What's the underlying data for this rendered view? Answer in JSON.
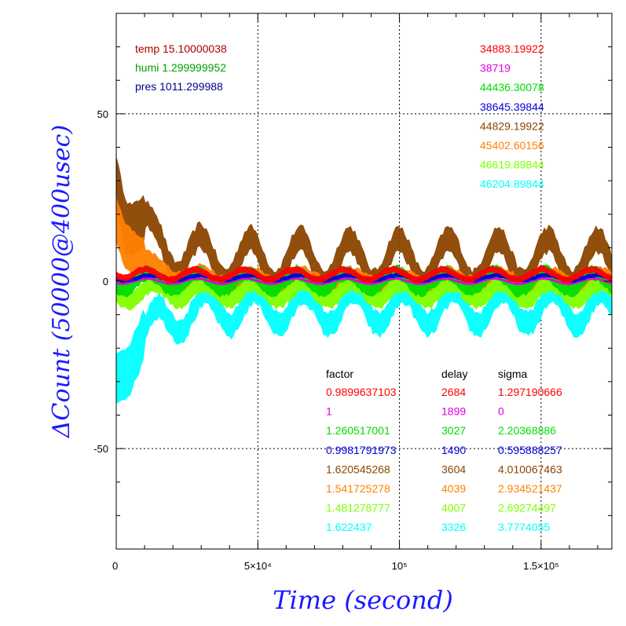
{
  "chart_data": {
    "type": "line",
    "title": "",
    "xlabel": "Time (second)",
    "ylabel": "ΔCount (50000@400usec)",
    "xlim": [
      0,
      175000
    ],
    "ylim": [
      -80,
      80
    ],
    "grid": true,
    "x_ticks": [
      {
        "value": 0,
        "label": "0"
      },
      {
        "value": 50000,
        "label": "5×10⁴"
      },
      {
        "value": 100000,
        "label": "10⁵"
      },
      {
        "value": 150000,
        "label": "1.5×10⁵"
      }
    ],
    "y_ticks": [
      {
        "value": 50,
        "label": "50"
      },
      {
        "value": 0,
        "label": "0"
      },
      {
        "value": -50,
        "label": "-50"
      }
    ],
    "env": [
      {
        "label": "temp",
        "value": "15.10000038",
        "color": "#aa0000"
      },
      {
        "label": "humi",
        "value": "1.299999952",
        "color": "#00a000"
      },
      {
        "label": "pres",
        "value": "1011.299988",
        "color": "#00008b"
      }
    ],
    "header": {
      "factor": "factor",
      "delay": "delay",
      "sigma": "sigma"
    },
    "series": [
      {
        "id": "34883.19922",
        "color": "#ff0000",
        "factor": "0.9899637103",
        "delay": "2684",
        "sigma": "1.297190666",
        "start": 3,
        "offset": 2,
        "amp": 1.5,
        "noise": 1.0,
        "decay": 0
      },
      {
        "id": "38719",
        "color": "#e000e0",
        "factor": "1",
        "delay": "1899",
        "sigma": "0",
        "start": 0,
        "offset": 0,
        "amp": 0.8,
        "noise": 0.3,
        "decay": 0
      },
      {
        "id": "44436.30078",
        "color": "#00dd00",
        "factor": "1.260517001",
        "delay": "3027",
        "sigma": "2.20368886",
        "start": 0,
        "offset": 0,
        "amp": 2.5,
        "noise": 2.2,
        "decay": 0
      },
      {
        "id": "38645.39844",
        "color": "#0000dd",
        "factor": "0.9981791973",
        "delay": "1490",
        "sigma": "0.595888257",
        "start": 1,
        "offset": 1,
        "amp": 0.8,
        "noise": 0.6,
        "decay": 0
      },
      {
        "id": "44829.19922",
        "color": "#8b4500",
        "factor": "1.620545268",
        "delay": "3604",
        "sigma": "4.010067463",
        "start": 32,
        "offset": 6,
        "amp": 6.5,
        "noise": 4.0,
        "decay": 28
      },
      {
        "id": "45402.60156",
        "color": "#ff8000",
        "factor": "1.541725278",
        "delay": "4039",
        "sigma": "2.934521437",
        "start": 18,
        "offset": 0,
        "amp": 1.5,
        "noise": 2.9,
        "decay": 14
      },
      {
        "id": "46619.89844",
        "color": "#7fff00",
        "factor": "1.481278777",
        "delay": "4007",
        "sigma": "2.69274497",
        "start": -4,
        "offset": -3,
        "amp": 2.5,
        "noise": 2.7,
        "decay": 0
      },
      {
        "id": "46204.89844",
        "color": "#00ffff",
        "factor": "1.622437",
        "delay": "3326",
        "sigma": "3.7774055",
        "start": -30,
        "offset": -8,
        "amp": 5.0,
        "noise": 3.8,
        "decay": 18
      }
    ]
  }
}
